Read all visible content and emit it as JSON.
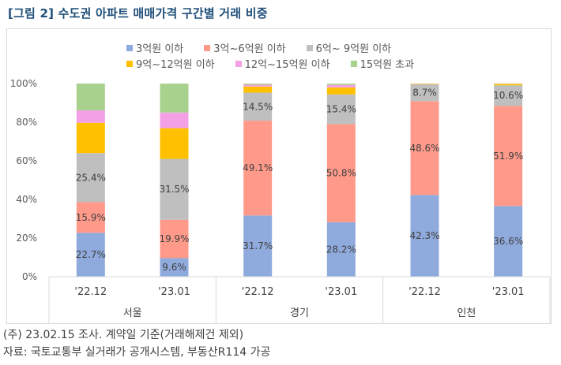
{
  "title": "[그림 2] 수도권 아파트 매매가격 구간별 거래 비중",
  "notes": {
    "line1": "(주) 23.02.15 조사. 계약일 기준(거래해제건 제외)",
    "line2": "자료: 국토교통부 실거래가 공개시스템, 부동산R114 가공"
  },
  "chart_data": {
    "type": "bar",
    "stacked": true,
    "title": "[그림 2] 수도권 아파트 매매가격 구간별 거래 비중",
    "categories": [
      "'22.12",
      "'23.01",
      "'22.12",
      "'23.01",
      "'22.12",
      "'23.01"
    ],
    "groups": [
      {
        "name": "서울",
        "categories": [
          0,
          1
        ]
      },
      {
        "name": "경기",
        "categories": [
          2,
          3
        ]
      },
      {
        "name": "인천",
        "categories": [
          4,
          5
        ]
      }
    ],
    "ylim": [
      0,
      100
    ],
    "yticks": [
      "0%",
      "20%",
      "40%",
      "60%",
      "80%",
      "100%"
    ],
    "legend_position": "top",
    "series": [
      {
        "name": "3억원 이하",
        "color": "#8faadc",
        "values": [
          22.7,
          9.6,
          31.7,
          28.2,
          42.3,
          36.6
        ]
      },
      {
        "name": "3억~6억원 이하",
        "color": "#ff9a8a",
        "values": [
          15.9,
          19.9,
          49.1,
          50.8,
          48.6,
          51.9
        ]
      },
      {
        "name": "6억~ 9억원 이하",
        "color": "#bfbfbf",
        "values": [
          25.4,
          31.5,
          14.5,
          15.4,
          8.7,
          10.6
        ]
      },
      {
        "name": "9억~12억원 이하",
        "color": "#ffc000",
        "values": [
          15.7,
          15.9,
          3.2,
          3.6,
          0.3,
          0.7
        ]
      },
      {
        "name": "12억~15억원 이하",
        "color": "#f4a0e6",
        "values": [
          6.4,
          8.1,
          0.9,
          1.3,
          0.1,
          0.1
        ]
      },
      {
        "name": "15억원 초과",
        "color": "#a9d18e",
        "values": [
          13.9,
          15.0,
          0.6,
          0.7,
          0.0,
          0.1
        ]
      }
    ],
    "labeled_series": [
      0,
      1,
      2
    ],
    "data_labels": [
      [
        "22.7%",
        "9.6%",
        "31.7%",
        "28.2%",
        "42.3%",
        "36.6%"
      ],
      [
        "15.9%",
        "19.9%",
        "49.1%",
        "50.8%",
        "48.6%",
        "51.9%"
      ],
      [
        "25.4%",
        "31.5%",
        "14.5%",
        "15.4%",
        "8.7%",
        "10.6%"
      ]
    ]
  }
}
